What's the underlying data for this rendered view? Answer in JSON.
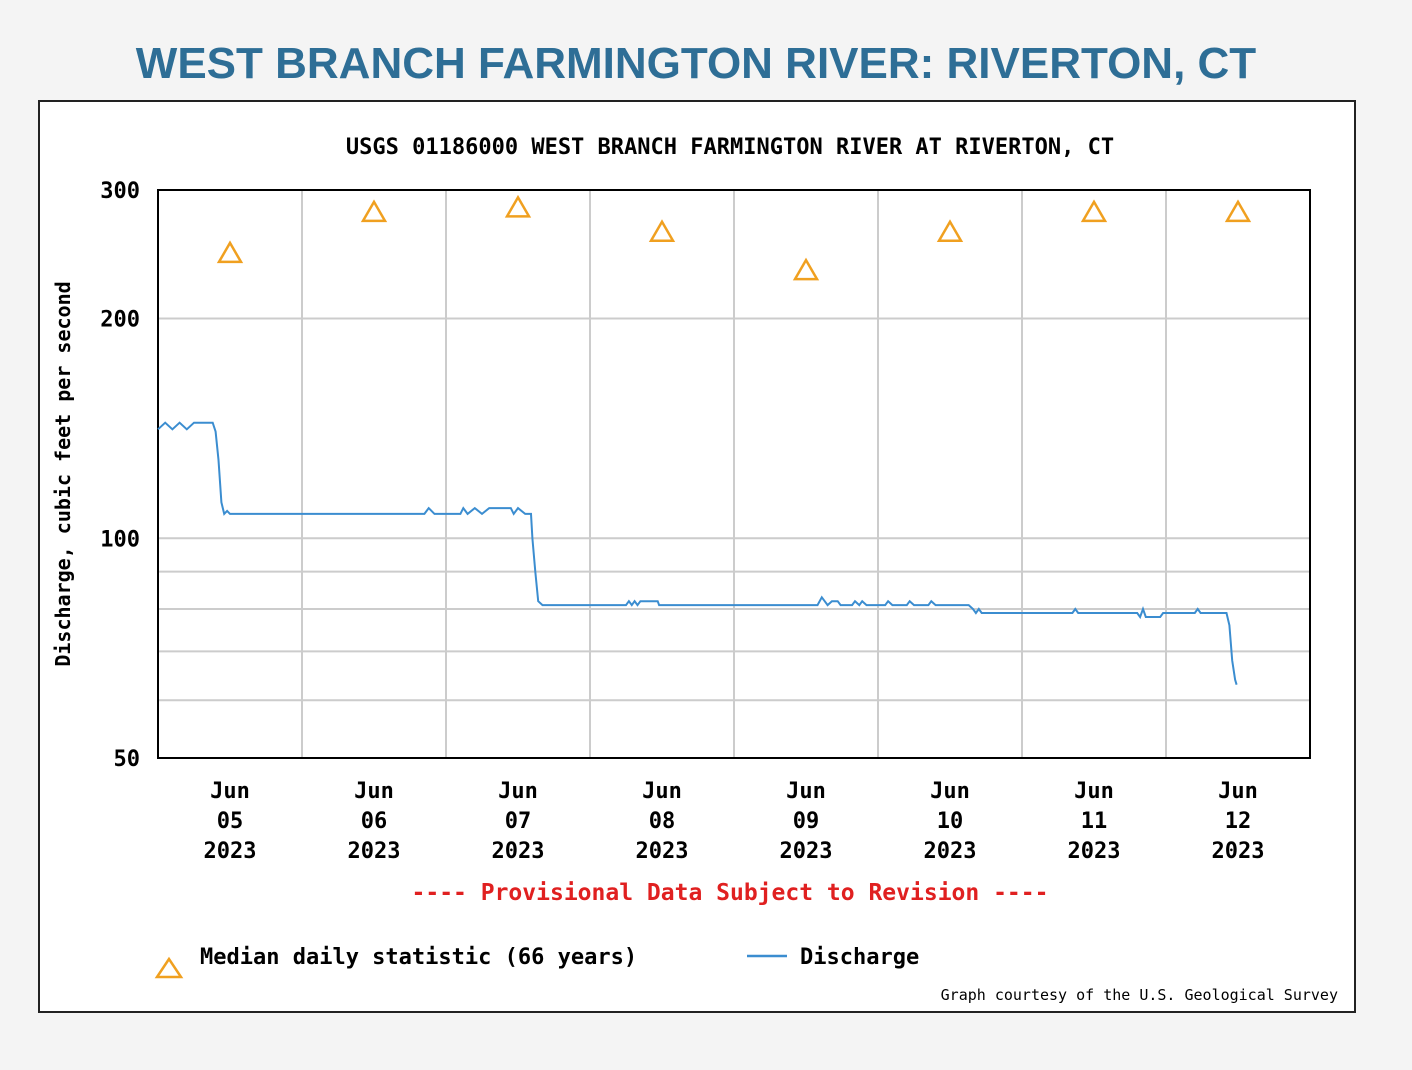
{
  "page": {
    "title": "WEST BRANCH FARMINGTON RIVER: RIVERTON, CT"
  },
  "colors": {
    "title": "#2e6e96",
    "series": "#3b8dd0",
    "median": "#f0a020",
    "provisional": "#e02020",
    "grid": "#cccccc",
    "axis": "#000000"
  },
  "chart_data": {
    "type": "line",
    "title": "USGS 01186000 WEST BRANCH FARMINGTON RIVER AT RIVERTON, CT",
    "ylabel": "Discharge, cubic feet per second",
    "xlabel": "",
    "y_scale": "log",
    "ylim": [
      50,
      300
    ],
    "y_ticks_labeled": [
      50,
      100,
      200,
      300
    ],
    "y_gridlines": [
      60,
      70,
      80,
      90,
      100,
      200,
      300
    ],
    "xlim_days": [
      0,
      8
    ],
    "x_tick_days": [
      0,
      1,
      2,
      3,
      4,
      5,
      6,
      7,
      8
    ],
    "x_labels": [
      {
        "day": 0.5,
        "lines": [
          "Jun",
          "05",
          "2023"
        ]
      },
      {
        "day": 1.5,
        "lines": [
          "Jun",
          "06",
          "2023"
        ]
      },
      {
        "day": 2.5,
        "lines": [
          "Jun",
          "07",
          "2023"
        ]
      },
      {
        "day": 3.5,
        "lines": [
          "Jun",
          "08",
          "2023"
        ]
      },
      {
        "day": 4.5,
        "lines": [
          "Jun",
          "09",
          "2023"
        ]
      },
      {
        "day": 5.5,
        "lines": [
          "Jun",
          "10",
          "2023"
        ]
      },
      {
        "day": 6.5,
        "lines": [
          "Jun",
          "11",
          "2023"
        ]
      },
      {
        "day": 7.5,
        "lines": [
          "Jun",
          "12",
          "2023"
        ]
      }
    ],
    "median_daily": {
      "name": "Median daily statistic (66 years)",
      "days": [
        0.5,
        1.5,
        2.5,
        3.5,
        4.5,
        5.5,
        6.5,
        7.5
      ],
      "values": [
        246,
        280,
        284,
        263,
        233,
        263,
        280,
        280
      ]
    },
    "series": [
      {
        "name": "Discharge",
        "points": [
          [
            0.0,
            141
          ],
          [
            0.05,
            144
          ],
          [
            0.1,
            141
          ],
          [
            0.15,
            144
          ],
          [
            0.2,
            141
          ],
          [
            0.25,
            144
          ],
          [
            0.3,
            144
          ],
          [
            0.38,
            144
          ],
          [
            0.4,
            140
          ],
          [
            0.42,
            128
          ],
          [
            0.44,
            112
          ],
          [
            0.46,
            108
          ],
          [
            0.48,
            109
          ],
          [
            0.5,
            108
          ],
          [
            1.0,
            108
          ],
          [
            1.5,
            108
          ],
          [
            1.85,
            108
          ],
          [
            1.88,
            110
          ],
          [
            1.92,
            108
          ],
          [
            2.0,
            108
          ],
          [
            2.1,
            108
          ],
          [
            2.12,
            110
          ],
          [
            2.15,
            108
          ],
          [
            2.2,
            110
          ],
          [
            2.25,
            108
          ],
          [
            2.3,
            110
          ],
          [
            2.4,
            110
          ],
          [
            2.45,
            110
          ],
          [
            2.47,
            108
          ],
          [
            2.5,
            110
          ],
          [
            2.55,
            108
          ],
          [
            2.59,
            108
          ],
          [
            2.6,
            100
          ],
          [
            2.62,
            90
          ],
          [
            2.64,
            82
          ],
          [
            2.67,
            81
          ],
          [
            3.0,
            81
          ],
          [
            3.25,
            81
          ],
          [
            3.27,
            82
          ],
          [
            3.29,
            81
          ],
          [
            3.31,
            82
          ],
          [
            3.33,
            81
          ],
          [
            3.35,
            82
          ],
          [
            3.4,
            82
          ],
          [
            3.47,
            82
          ],
          [
            3.48,
            81
          ],
          [
            4.0,
            81
          ],
          [
            4.58,
            81
          ],
          [
            4.61,
            83
          ],
          [
            4.63,
            82
          ],
          [
            4.65,
            81
          ],
          [
            4.68,
            82
          ],
          [
            4.72,
            82
          ],
          [
            4.74,
            81
          ],
          [
            4.82,
            81
          ],
          [
            4.84,
            82
          ],
          [
            4.87,
            81
          ],
          [
            4.89,
            82
          ],
          [
            4.92,
            81
          ],
          [
            4.95,
            81
          ],
          [
            5.05,
            81
          ],
          [
            5.07,
            82
          ],
          [
            5.1,
            81
          ],
          [
            5.2,
            81
          ],
          [
            5.22,
            82
          ],
          [
            5.25,
            81
          ],
          [
            5.35,
            81
          ],
          [
            5.37,
            82
          ],
          [
            5.4,
            81
          ],
          [
            5.63,
            81
          ],
          [
            5.66,
            80
          ],
          [
            5.68,
            79
          ],
          [
            5.7,
            80
          ],
          [
            5.72,
            79
          ],
          [
            6.0,
            79
          ],
          [
            6.35,
            79
          ],
          [
            6.37,
            80
          ],
          [
            6.39,
            79
          ],
          [
            6.8,
            79
          ],
          [
            6.82,
            78
          ],
          [
            6.84,
            80
          ],
          [
            6.86,
            78
          ],
          [
            6.96,
            78
          ],
          [
            6.98,
            79
          ],
          [
            7.2,
            79
          ],
          [
            7.22,
            80
          ],
          [
            7.24,
            79
          ],
          [
            7.42,
            79
          ],
          [
            7.44,
            76
          ],
          [
            7.46,
            68
          ],
          [
            7.48,
            64
          ],
          [
            7.49,
            63
          ]
        ]
      }
    ],
    "provisional_note": "---- Provisional Data Subject to Revision ----",
    "legend": {
      "median_label": "Median daily statistic (66 years)",
      "discharge_label": "Discharge"
    },
    "credit": "Graph courtesy of the U.S. Geological Survey"
  }
}
